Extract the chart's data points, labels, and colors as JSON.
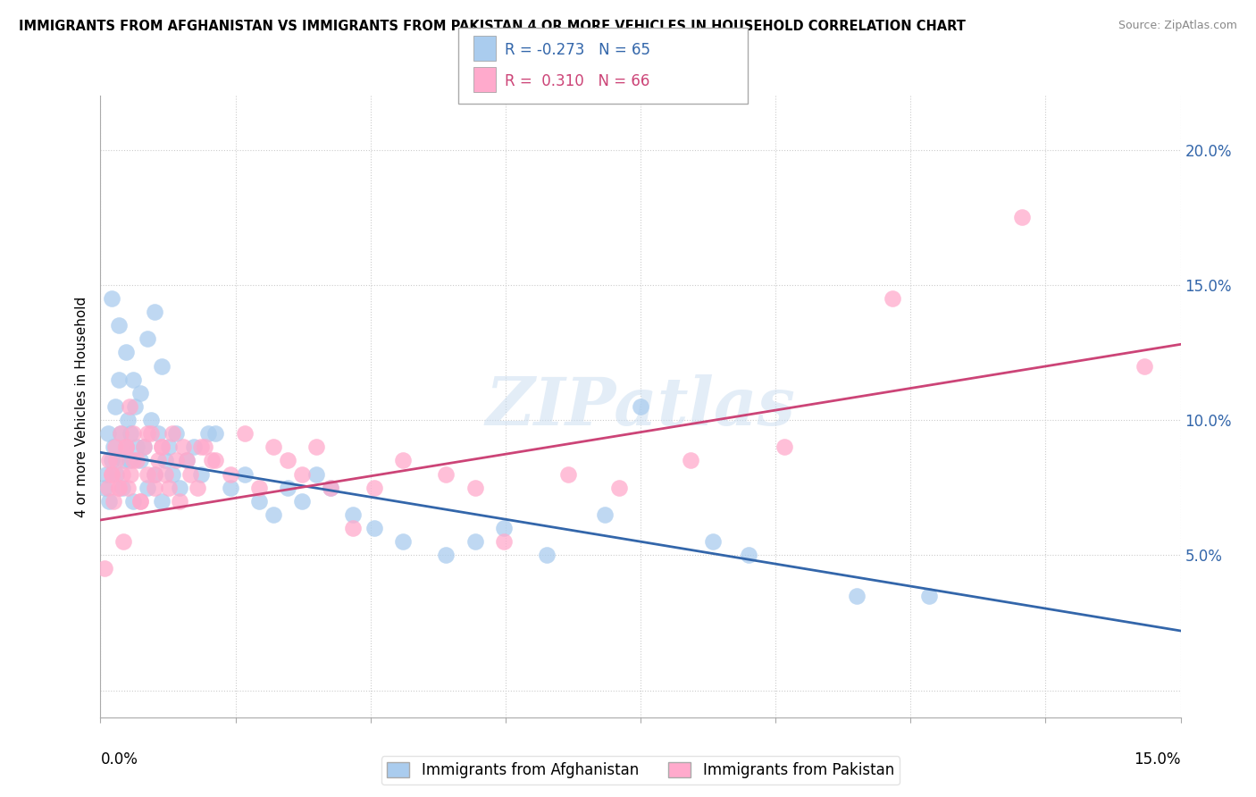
{
  "title": "IMMIGRANTS FROM AFGHANISTAN VS IMMIGRANTS FROM PAKISTAN 4 OR MORE VEHICLES IN HOUSEHOLD CORRELATION CHART",
  "source": "Source: ZipAtlas.com",
  "ylabel": "4 or more Vehicles in Household",
  "xmin": 0.0,
  "xmax": 15.0,
  "ymin": -1.0,
  "ymax": 22.0,
  "yticks": [
    0.0,
    5.0,
    10.0,
    15.0,
    20.0
  ],
  "ytick_labels": [
    "",
    "5.0%",
    "10.0%",
    "15.0%",
    "20.0%"
  ],
  "color_blue": "#aaccee",
  "color_pink": "#ffaacc",
  "color_blue_dark": "#3366aa",
  "color_pink_dark": "#cc4477",
  "blue_trend_x": [
    0.0,
    15.0
  ],
  "blue_trend_y": [
    8.8,
    2.2
  ],
  "pink_trend_x": [
    0.0,
    15.0
  ],
  "pink_trend_y": [
    6.3,
    12.8
  ],
  "blue_scatter_x": [
    0.05,
    0.08,
    0.1,
    0.12,
    0.15,
    0.18,
    0.2,
    0.22,
    0.25,
    0.28,
    0.3,
    0.32,
    0.35,
    0.38,
    0.4,
    0.42,
    0.45,
    0.48,
    0.5,
    0.55,
    0.6,
    0.65,
    0.7,
    0.75,
    0.8,
    0.85,
    0.9,
    0.95,
    1.0,
    1.05,
    1.1,
    1.2,
    1.3,
    1.4,
    1.5,
    1.6,
    1.8,
    2.0,
    2.2,
    2.4,
    2.6,
    2.8,
    3.0,
    3.2,
    3.5,
    3.8,
    4.2,
    4.8,
    5.2,
    5.6,
    6.2,
    7.0,
    7.5,
    8.5,
    9.0,
    10.5,
    11.5,
    0.15,
    0.25,
    0.35,
    0.45,
    0.55,
    0.65,
    0.75,
    0.85
  ],
  "blue_scatter_y": [
    7.5,
    8.0,
    9.5,
    7.0,
    8.5,
    9.0,
    10.5,
    8.0,
    11.5,
    9.5,
    7.5,
    8.5,
    9.0,
    10.0,
    8.5,
    9.5,
    7.0,
    10.5,
    9.0,
    8.5,
    9.0,
    7.5,
    10.0,
    8.0,
    9.5,
    7.0,
    8.5,
    9.0,
    8.0,
    9.5,
    7.5,
    8.5,
    9.0,
    8.0,
    9.5,
    9.5,
    7.5,
    8.0,
    7.0,
    6.5,
    7.5,
    7.0,
    8.0,
    7.5,
    6.5,
    6.0,
    5.5,
    5.0,
    5.5,
    6.0,
    5.0,
    6.5,
    10.5,
    5.5,
    5.0,
    3.5,
    3.5,
    14.5,
    13.5,
    12.5,
    11.5,
    11.0,
    13.0,
    14.0,
    12.0
  ],
  "pink_scatter_x": [
    0.05,
    0.1,
    0.12,
    0.15,
    0.18,
    0.2,
    0.22,
    0.25,
    0.28,
    0.3,
    0.32,
    0.35,
    0.38,
    0.4,
    0.42,
    0.45,
    0.5,
    0.55,
    0.6,
    0.65,
    0.7,
    0.75,
    0.8,
    0.85,
    0.9,
    1.0,
    1.1,
    1.2,
    1.4,
    1.6,
    1.8,
    2.0,
    2.2,
    2.4,
    2.6,
    2.8,
    3.0,
    3.2,
    3.5,
    3.8,
    4.2,
    4.8,
    5.2,
    5.6,
    6.5,
    7.2,
    8.2,
    9.5,
    11.0,
    12.8,
    14.5,
    0.15,
    0.25,
    0.35,
    0.45,
    0.55,
    0.65,
    0.75,
    0.85,
    0.95,
    1.05,
    1.15,
    1.25,
    1.35,
    1.45,
    1.55
  ],
  "pink_scatter_y": [
    4.5,
    7.5,
    8.5,
    8.0,
    7.0,
    9.0,
    8.5,
    7.5,
    9.5,
    8.0,
    5.5,
    9.0,
    7.5,
    10.5,
    8.0,
    9.5,
    8.5,
    7.0,
    9.0,
    8.0,
    9.5,
    7.5,
    8.5,
    9.0,
    8.0,
    9.5,
    7.0,
    8.5,
    9.0,
    8.5,
    8.0,
    9.5,
    7.5,
    9.0,
    8.5,
    8.0,
    9.0,
    7.5,
    6.0,
    7.5,
    8.5,
    8.0,
    7.5,
    5.5,
    8.0,
    7.5,
    8.5,
    9.0,
    14.5,
    17.5,
    12.0,
    8.0,
    7.5,
    9.0,
    8.5,
    7.0,
    9.5,
    8.0,
    9.0,
    7.5,
    8.5,
    9.0,
    8.0,
    7.5,
    9.0,
    8.5
  ]
}
